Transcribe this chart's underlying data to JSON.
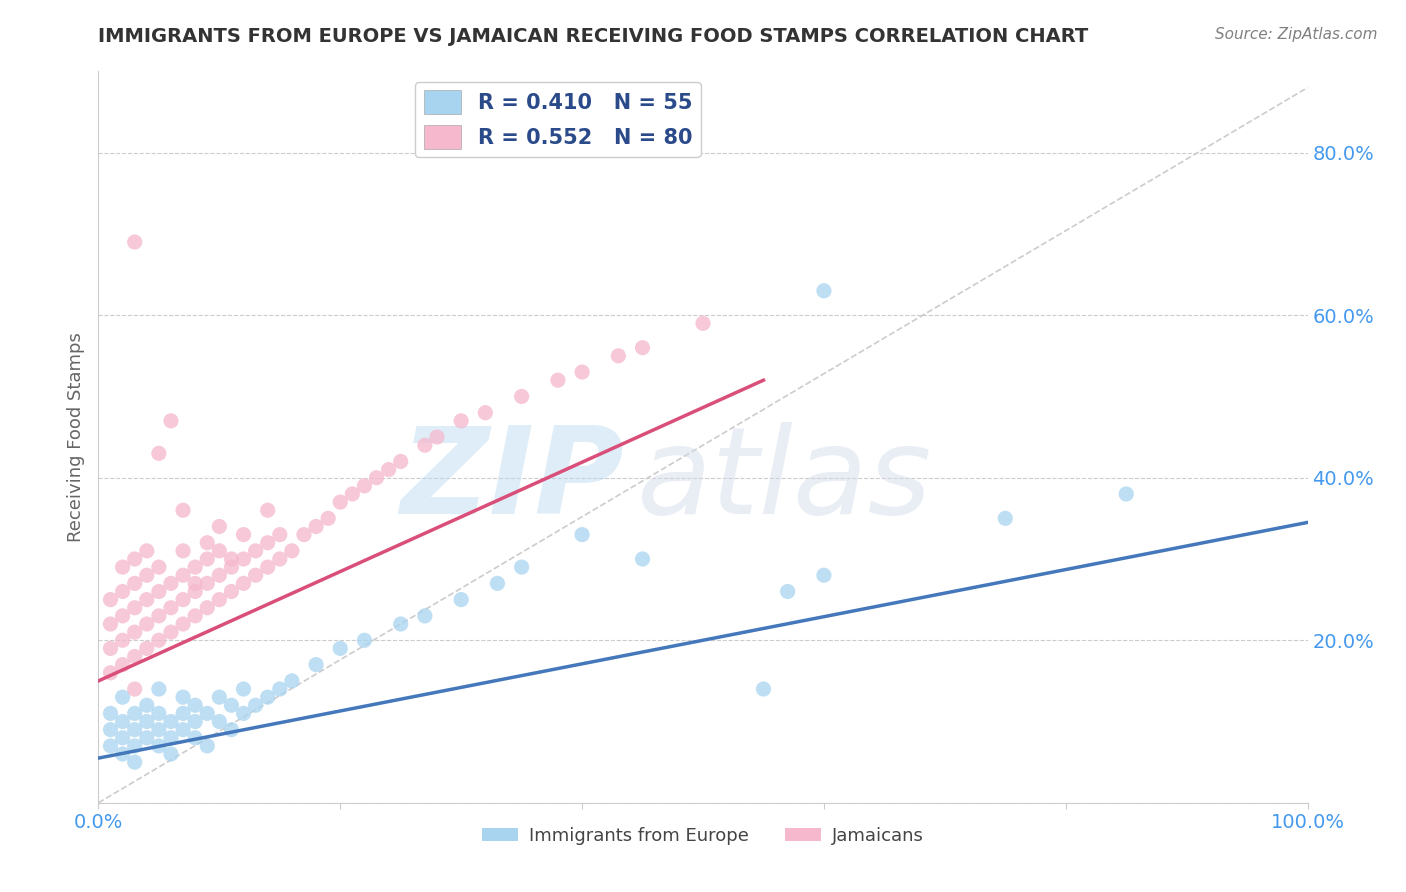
{
  "title": "IMMIGRANTS FROM EUROPE VS JAMAICAN RECEIVING FOOD STAMPS CORRELATION CHART",
  "source": "Source: ZipAtlas.com",
  "ylabel": "Receiving Food Stamps",
  "xlim": [
    0,
    1.0
  ],
  "ylim": [
    0,
    0.9
  ],
  "yticks": [
    0.0,
    0.2,
    0.4,
    0.6,
    0.8
  ],
  "ytick_labels": [
    "",
    "20.0%",
    "40.0%",
    "60.0%",
    "80.0%"
  ],
  "xticks": [
    0.0,
    0.2,
    0.4,
    0.6,
    0.8,
    1.0
  ],
  "xtick_labels": [
    "0.0%",
    "",
    "",
    "",
    "",
    "100.0%"
  ],
  "blue_R": 0.41,
  "blue_N": 55,
  "pink_R": 0.552,
  "pink_N": 80,
  "blue_color": "#a8d4f0",
  "pink_color": "#f5b8cc",
  "blue_line_color": "#4478bb",
  "pink_line_color": "#d94f7a",
  "legend_text_color": "#2a4a8a",
  "legend_label_blue": "Immigrants from Europe",
  "legend_label_pink": "Jamaicans",
  "watermark_zip": "ZIP",
  "watermark_atlas": "atlas",
  "background_color": "#ffffff",
  "grid_color": "#cccccc",
  "title_color": "#333333",
  "axis_label_color": "#666666",
  "tick_color": "#4499ee",
  "blue_scatter_x": [
    0.01,
    0.01,
    0.01,
    0.02,
    0.02,
    0.02,
    0.02,
    0.03,
    0.03,
    0.03,
    0.03,
    0.04,
    0.04,
    0.04,
    0.05,
    0.05,
    0.05,
    0.05,
    0.06,
    0.06,
    0.06,
    0.07,
    0.07,
    0.07,
    0.08,
    0.08,
    0.08,
    0.09,
    0.09,
    0.1,
    0.1,
    0.11,
    0.11,
    0.12,
    0.12,
    0.13,
    0.14,
    0.15,
    0.16,
    0.18,
    0.2,
    0.22,
    0.25,
    0.27,
    0.3,
    0.33,
    0.35,
    0.4,
    0.45,
    0.55,
    0.57,
    0.6,
    0.75,
    0.85,
    0.6
  ],
  "blue_scatter_y": [
    0.07,
    0.09,
    0.11,
    0.06,
    0.08,
    0.1,
    0.13,
    0.07,
    0.09,
    0.11,
    0.05,
    0.08,
    0.1,
    0.12,
    0.07,
    0.09,
    0.11,
    0.14,
    0.08,
    0.1,
    0.06,
    0.09,
    0.11,
    0.13,
    0.08,
    0.1,
    0.12,
    0.07,
    0.11,
    0.1,
    0.13,
    0.09,
    0.12,
    0.11,
    0.14,
    0.12,
    0.13,
    0.14,
    0.15,
    0.17,
    0.19,
    0.2,
    0.22,
    0.23,
    0.25,
    0.27,
    0.29,
    0.33,
    0.3,
    0.14,
    0.26,
    0.28,
    0.35,
    0.38,
    0.63
  ],
  "pink_scatter_x": [
    0.01,
    0.01,
    0.01,
    0.01,
    0.02,
    0.02,
    0.02,
    0.02,
    0.02,
    0.03,
    0.03,
    0.03,
    0.03,
    0.03,
    0.03,
    0.04,
    0.04,
    0.04,
    0.04,
    0.04,
    0.05,
    0.05,
    0.05,
    0.05,
    0.06,
    0.06,
    0.06,
    0.07,
    0.07,
    0.07,
    0.07,
    0.08,
    0.08,
    0.08,
    0.09,
    0.09,
    0.09,
    0.1,
    0.1,
    0.1,
    0.11,
    0.11,
    0.12,
    0.12,
    0.13,
    0.13,
    0.14,
    0.14,
    0.15,
    0.15,
    0.16,
    0.17,
    0.18,
    0.19,
    0.2,
    0.21,
    0.22,
    0.23,
    0.24,
    0.25,
    0.27,
    0.28,
    0.3,
    0.32,
    0.35,
    0.38,
    0.4,
    0.43,
    0.45,
    0.5,
    0.03,
    0.05,
    0.06,
    0.07,
    0.08,
    0.09,
    0.1,
    0.11,
    0.12,
    0.14
  ],
  "pink_scatter_y": [
    0.16,
    0.19,
    0.22,
    0.25,
    0.17,
    0.2,
    0.23,
    0.26,
    0.29,
    0.18,
    0.21,
    0.24,
    0.27,
    0.3,
    0.14,
    0.19,
    0.22,
    0.25,
    0.28,
    0.31,
    0.2,
    0.23,
    0.26,
    0.29,
    0.21,
    0.24,
    0.27,
    0.22,
    0.25,
    0.28,
    0.31,
    0.23,
    0.26,
    0.29,
    0.24,
    0.27,
    0.3,
    0.25,
    0.28,
    0.31,
    0.26,
    0.29,
    0.27,
    0.3,
    0.28,
    0.31,
    0.29,
    0.32,
    0.3,
    0.33,
    0.31,
    0.33,
    0.34,
    0.35,
    0.37,
    0.38,
    0.39,
    0.4,
    0.41,
    0.42,
    0.44,
    0.45,
    0.47,
    0.48,
    0.5,
    0.52,
    0.53,
    0.55,
    0.56,
    0.59,
    0.69,
    0.43,
    0.47,
    0.36,
    0.27,
    0.32,
    0.34,
    0.3,
    0.33,
    0.36
  ],
  "blue_line_x": [
    0.0,
    1.0
  ],
  "blue_line_y": [
    0.055,
    0.345
  ],
  "pink_line_x": [
    0.0,
    0.55
  ],
  "pink_line_y": [
    0.15,
    0.52
  ],
  "diag_line_x": [
    0.0,
    1.0
  ],
  "diag_line_y": [
    0.0,
    0.88
  ],
  "diag_color": "#cccccc"
}
